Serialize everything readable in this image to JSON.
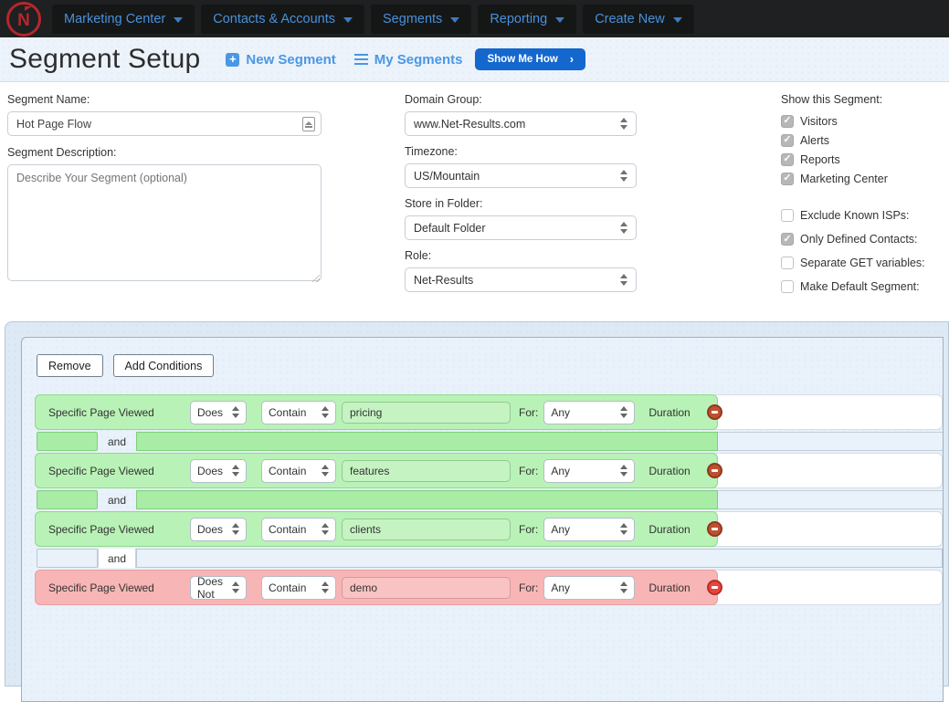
{
  "nav": {
    "logo_letter": "N",
    "items": [
      {
        "label": "Marketing Center"
      },
      {
        "label": "Contacts & Accounts"
      },
      {
        "label": "Segments"
      },
      {
        "label": "Reporting"
      },
      {
        "label": "Create New"
      }
    ]
  },
  "header": {
    "title": "Segment Setup",
    "new_segment_label": "New Segment",
    "my_segments_label": "My Segments",
    "show_me_how_label": "Show Me How",
    "show_me_how_chevron": "›"
  },
  "form": {
    "segment_name": {
      "label": "Segment Name:",
      "value": "Hot Page Flow"
    },
    "segment_description": {
      "label": "Segment Description:",
      "placeholder": "Describe Your Segment (optional)"
    },
    "selects": [
      {
        "label": "Domain Group:",
        "value": "www.Net-Results.com"
      },
      {
        "label": "Timezone:",
        "value": "US/Mountain"
      },
      {
        "label": "Store in Folder:",
        "value": "Default Folder"
      },
      {
        "label": "Role:",
        "value": "Net-Results"
      }
    ],
    "show_segment": {
      "label": "Show this Segment:",
      "options": [
        {
          "label": "Visitors",
          "checked": true
        },
        {
          "label": "Alerts",
          "checked": true
        },
        {
          "label": "Reports",
          "checked": true
        },
        {
          "label": "Marketing Center",
          "checked": true
        }
      ]
    },
    "flags": [
      {
        "label": "Exclude Known ISPs:",
        "checked": false
      },
      {
        "label": "Only Defined Contacts:",
        "checked": true
      },
      {
        "label": "Separate GET variables:",
        "checked": false
      },
      {
        "label": "Make Default Segment:",
        "checked": false
      }
    ]
  },
  "conditions": {
    "remove_button": "Remove",
    "add_conditions_button": "Add Conditions",
    "for_label": "For:",
    "duration_label": "Duration",
    "rows": [
      {
        "field": "Specific Page Viewed",
        "operator": "Does",
        "comparison": "Contain",
        "value": "pricing",
        "for": "Any",
        "highlight": "green"
      },
      {
        "field": "Specific Page Viewed",
        "operator": "Does",
        "comparison": "Contain",
        "value": "features",
        "for": "Any",
        "highlight": "green"
      },
      {
        "field": "Specific Page Viewed",
        "operator": "Does",
        "comparison": "Contain",
        "value": "clients",
        "for": "Any",
        "highlight": "green"
      },
      {
        "field": "Specific Page Viewed",
        "operator": "Does Not",
        "comparison": "Contain",
        "value": "demo",
        "for": "Any",
        "highlight": "red"
      }
    ],
    "connectors": [
      {
        "label": "and",
        "highlight": "green"
      },
      {
        "label": "and",
        "highlight": "green"
      },
      {
        "label": "and",
        "highlight": "plain"
      }
    ]
  },
  "colors": {
    "nav_bg": "#1e2021",
    "nav_link": "#4a90d9",
    "logo_red": "#b5272c",
    "header_bg": "#ecf3fb",
    "link_blue": "#4a97e4",
    "button_blue": "#1467cd",
    "highlight_green": "#b9f2b6",
    "highlight_red": "#f8b5b5",
    "panel_outer": "#dde9f4",
    "panel_inner": "#e9f1fb"
  }
}
